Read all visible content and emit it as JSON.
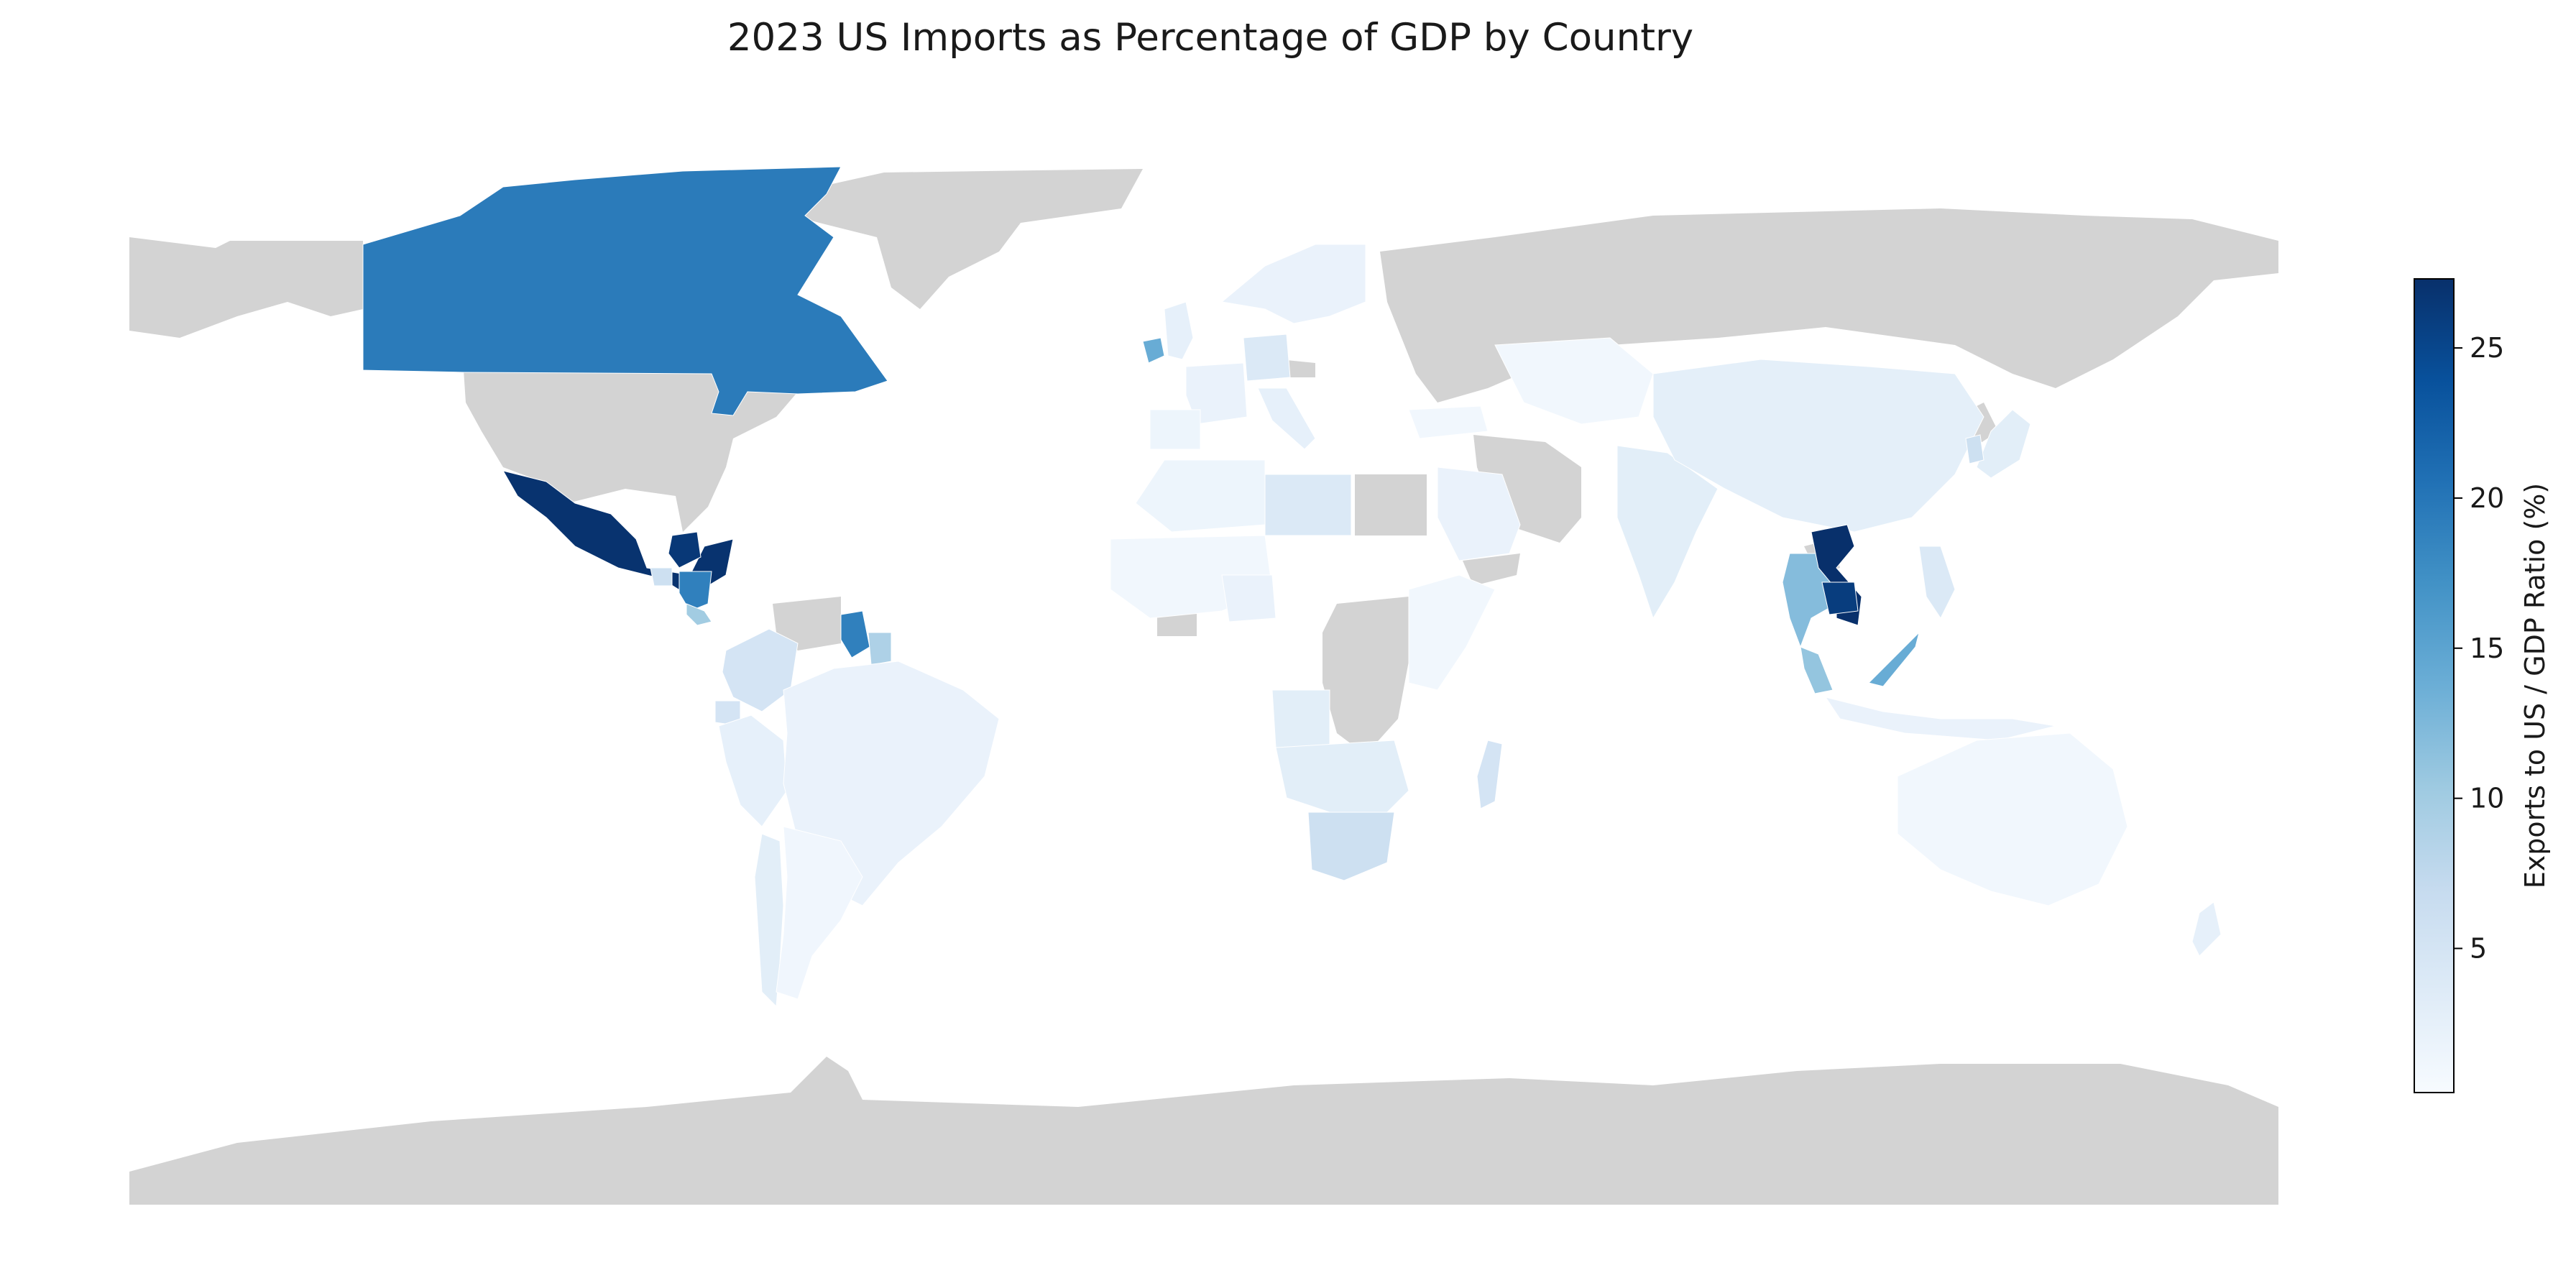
{
  "title": "2023 US Imports as Percentage of GDP by Country",
  "chart_data": {
    "type": "choropleth",
    "title": "2023 US Imports as Percentage of GDP by Country",
    "colorbar": {
      "label": "Exports to US / GDP Ratio (%)",
      "min": 0.2,
      "max": 27.3,
      "ticks": [
        5,
        10,
        15,
        20,
        25
      ],
      "colormap": "Blues",
      "placement": "right"
    },
    "no_data_color": "#d3d3d3",
    "regions": [
      {
        "name": "Canada",
        "value": 19.5
      },
      {
        "name": "Mexico",
        "value": 27.0
      },
      {
        "name": "Honduras",
        "value": 26.5
      },
      {
        "name": "Nicaragua",
        "value": 19.0
      },
      {
        "name": "Costa Rica",
        "value": 10.0
      },
      {
        "name": "Guatemala",
        "value": 6.0
      },
      {
        "name": "Guyana",
        "value": 19.0
      },
      {
        "name": "Suriname",
        "value": 9.0
      },
      {
        "name": "Colombia",
        "value": 5.0
      },
      {
        "name": "Ecuador",
        "value": 5.0
      },
      {
        "name": "Peru",
        "value": 2.5
      },
      {
        "name": "Brazil",
        "value": 2.0
      },
      {
        "name": "Chile",
        "value": 3.0
      },
      {
        "name": "Argentina",
        "value": 1.2
      },
      {
        "name": "Ireland",
        "value": 14.0
      },
      {
        "name": "United Kingdom",
        "value": 2.5
      },
      {
        "name": "Germany",
        "value": 4.0
      },
      {
        "name": "France",
        "value": 2.0
      },
      {
        "name": "Spain",
        "value": 1.5
      },
      {
        "name": "Italy",
        "value": 2.5
      },
      {
        "name": "Scandinavia",
        "value": 2.0
      },
      {
        "name": "Algeria",
        "value": 1.5
      },
      {
        "name": "Libya",
        "value": 4.0
      },
      {
        "name": "West Africa",
        "value": 1.0
      },
      {
        "name": "Nigeria",
        "value": 2.0
      },
      {
        "name": "Angola",
        "value": 3.0
      },
      {
        "name": "Southern Africa",
        "value": 3.0
      },
      {
        "name": "South Africa",
        "value": 6.0
      },
      {
        "name": "Madagascar",
        "value": 5.0
      },
      {
        "name": "East Africa",
        "value": 1.0
      },
      {
        "name": "Saudi Arabia",
        "value": 2.0
      },
      {
        "name": "Turkey",
        "value": 1.0
      },
      {
        "name": "Kazakhstan",
        "value": 1.0
      },
      {
        "name": "India",
        "value": 3.0
      },
      {
        "name": "China",
        "value": 2.8
      },
      {
        "name": "Japan",
        "value": 3.0
      },
      {
        "name": "South Korea",
        "value": 6.0
      },
      {
        "name": "Thailand",
        "value": 12.0
      },
      {
        "name": "Vietnam",
        "value": 27.3
      },
      {
        "name": "Cambodia",
        "value": 26.0
      },
      {
        "name": "Malaysia",
        "value": 11.0
      },
      {
        "name": "Borneo (Malaysia)",
        "value": 14.0
      },
      {
        "name": "Philippines",
        "value": 4.0
      },
      {
        "name": "Indonesia",
        "value": 2.0
      },
      {
        "name": "Australia",
        "value": 1.0
      },
      {
        "name": "New Zealand",
        "value": 2.5
      }
    ]
  }
}
